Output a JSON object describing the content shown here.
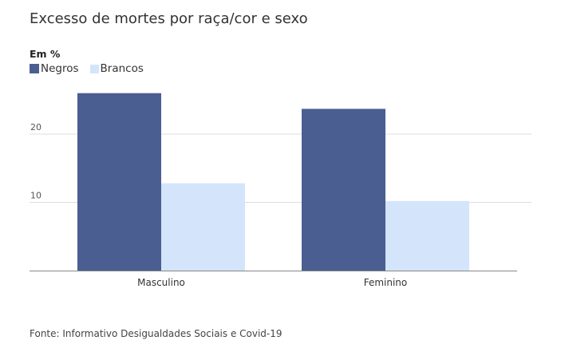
{
  "chart_data": {
    "type": "bar",
    "title": "Excesso de mortes por raça/cor e sexo",
    "unit_label": "Em %",
    "categories": [
      "Masculino",
      "Feminino"
    ],
    "series": [
      {
        "name": "Negros",
        "color": "#4b5e92",
        "values": [
          26.0,
          23.7
        ]
      },
      {
        "name": "Brancos",
        "color": "#d4e5fb",
        "values": [
          12.8,
          10.2
        ]
      }
    ],
    "y_ticks": [
      10,
      20
    ],
    "ylim": [
      0,
      30
    ],
    "grid": true,
    "legend_position": "top-left",
    "source": "Fonte: Informativo Desigualdades Sociais e Covid-19"
  }
}
